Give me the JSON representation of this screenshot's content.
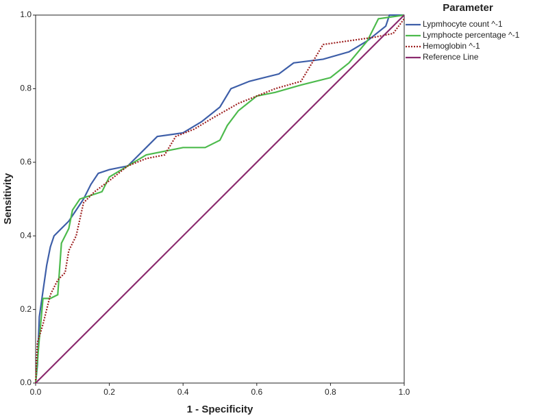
{
  "chart_data": {
    "type": "line",
    "xlabel": "1 - Specificity",
    "ylabel": "Sensitivity",
    "legend_title": "Parameter",
    "legend": "right",
    "grid": false,
    "xlim": [
      0,
      1
    ],
    "ylim": [
      0,
      1
    ],
    "xticks": [
      {
        "value": 0,
        "label": "0.0"
      },
      0.2,
      0.4,
      0.6,
      0.8,
      {
        "value": 1,
        "label": "1.0"
      }
    ],
    "yticks": [
      {
        "value": 0,
        "label": "0.0"
      },
      0.2,
      0.4,
      0.6,
      0.8,
      {
        "value": 1,
        "label": "1.0"
      }
    ],
    "series": [
      {
        "name": "Lypmhocyte count ^-1",
        "color": "#3d5ea8",
        "dash": "solid",
        "x": [
          0,
          0.005,
          0.01,
          0.02,
          0.03,
          0.04,
          0.05,
          0.07,
          0.09,
          0.11,
          0.13,
          0.15,
          0.17,
          0.2,
          0.25,
          0.3,
          0.33,
          0.4,
          0.45,
          0.5,
          0.53,
          0.58,
          0.66,
          0.7,
          0.78,
          0.85,
          0.9,
          0.95,
          0.96,
          1
        ],
        "values": [
          0,
          0.05,
          0.18,
          0.25,
          0.32,
          0.37,
          0.4,
          0.42,
          0.44,
          0.47,
          0.5,
          0.54,
          0.57,
          0.58,
          0.59,
          0.64,
          0.67,
          0.68,
          0.71,
          0.75,
          0.8,
          0.82,
          0.84,
          0.87,
          0.88,
          0.9,
          0.93,
          0.97,
          1,
          1
        ]
      },
      {
        "name": "Lymphocte percentage ^-1",
        "color": "#4cba4c",
        "dash": "solid",
        "x": [
          0,
          0.01,
          0.02,
          0.04,
          0.06,
          0.07,
          0.09,
          0.1,
          0.12,
          0.18,
          0.2,
          0.25,
          0.3,
          0.4,
          0.46,
          0.5,
          0.52,
          0.55,
          0.6,
          0.65,
          0.72,
          0.8,
          0.85,
          0.9,
          0.93,
          1
        ],
        "values": [
          0,
          0.12,
          0.23,
          0.23,
          0.24,
          0.38,
          0.42,
          0.47,
          0.5,
          0.52,
          0.56,
          0.59,
          0.62,
          0.64,
          0.64,
          0.66,
          0.7,
          0.74,
          0.78,
          0.79,
          0.81,
          0.83,
          0.87,
          0.93,
          0.99,
          1
        ]
      },
      {
        "name": "Hemoglobin ^-1",
        "color": "#9b1c1c",
        "dash": "dotted",
        "x": [
          0,
          0.005,
          0.02,
          0.04,
          0.06,
          0.08,
          0.09,
          0.11,
          0.13,
          0.16,
          0.2,
          0.25,
          0.3,
          0.35,
          0.38,
          0.43,
          0.48,
          0.55,
          0.6,
          0.65,
          0.72,
          0.75,
          0.78,
          0.85,
          0.92,
          0.97,
          1
        ],
        "values": [
          0,
          0.11,
          0.16,
          0.24,
          0.28,
          0.3,
          0.36,
          0.4,
          0.49,
          0.52,
          0.55,
          0.59,
          0.61,
          0.62,
          0.67,
          0.69,
          0.72,
          0.76,
          0.78,
          0.8,
          0.82,
          0.87,
          0.92,
          0.93,
          0.94,
          0.95,
          0.99
        ]
      },
      {
        "name": "Reference Line",
        "color": "#8b2a6e",
        "dash": "solid",
        "x": [
          0,
          1
        ],
        "values": [
          0,
          1
        ]
      }
    ]
  }
}
